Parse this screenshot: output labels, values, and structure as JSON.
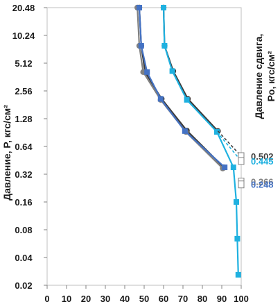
{
  "chart_data": {
    "type": "line",
    "ylabel": "Давление, P, кгс/см²",
    "y2label": "Давление сдвига, Po, кгс/см²",
    "y_scale": "log2",
    "x_ticks": [
      "0",
      "10",
      "20",
      "30",
      "40",
      "50",
      "60",
      "70",
      "80",
      "90",
      "100"
    ],
    "y_ticks": [
      "20.48",
      "10.24",
      "5.12",
      "2.56",
      "1.28",
      "0.64",
      "0.32",
      "0.16",
      "0.08",
      "0.04",
      "0.02"
    ],
    "xlim": [
      0,
      100
    ],
    "ylim": [
      0.02,
      20.48
    ],
    "grid": false,
    "series": [
      {
        "color": "#3a3a3a",
        "marker": "circle",
        "points": [
          [
            47.5,
            20.48
          ],
          [
            48.5,
            7.9
          ],
          [
            50.5,
            4.1
          ],
          [
            59,
            2.1
          ],
          [
            72,
            0.95
          ],
          [
            91,
            0.38
          ]
        ]
      },
      {
        "color": "#808080",
        "marker": "circle",
        "points": [
          [
            46.5,
            20.48
          ],
          [
            47.5,
            7.9
          ],
          [
            49.5,
            4.1
          ],
          [
            58.5,
            2.05
          ],
          [
            71.5,
            0.92
          ],
          [
            90.5,
            0.37
          ]
        ]
      },
      {
        "color": "#4472c4",
        "marker": "square",
        "points": [
          [
            47.5,
            20.48
          ],
          [
            48.5,
            7.9
          ],
          [
            51.5,
            4.1
          ],
          [
            58.5,
            2.1
          ],
          [
            71,
            0.94
          ],
          [
            91.5,
            0.38
          ]
        ]
      },
      {
        "color": "#3b3b3b",
        "marker": "circle",
        "points": [
          [
            60,
            20.48
          ],
          [
            60.5,
            7.9
          ],
          [
            65,
            4.2
          ],
          [
            72.5,
            2.1
          ],
          [
            88,
            0.94
          ]
        ]
      },
      {
        "color": "#1fb1e0",
        "marker": "square",
        "points": [
          [
            60,
            20.48
          ],
          [
            60.5,
            7.9
          ],
          [
            64.5,
            4.2
          ],
          [
            72,
            2.05
          ],
          [
            87.5,
            0.92
          ],
          [
            96,
            0.38
          ],
          [
            97.5,
            0.16
          ],
          [
            98,
            0.064
          ],
          [
            98.5,
            0.026
          ]
        ]
      }
    ],
    "end_values": [
      {
        "label": "0.502",
        "value": 0.502,
        "color": "#404040"
      },
      {
        "label": "0.445",
        "value": 0.445,
        "color": "#1fb1e0"
      },
      {
        "label": "0.266",
        "value": 0.266,
        "color": "#808080"
      },
      {
        "label": "0.248",
        "value": 0.248,
        "color": "#4472c4"
      }
    ]
  }
}
